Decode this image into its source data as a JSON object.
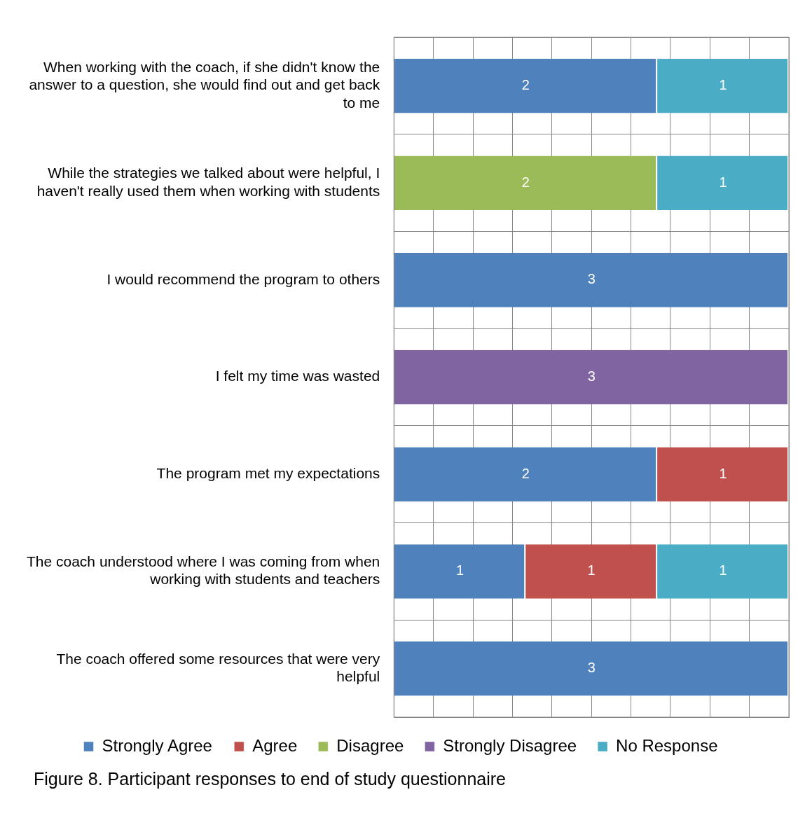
{
  "chart_data": {
    "type": "bar",
    "orientation": "horizontal",
    "stacked": true,
    "data_labels": true,
    "grid": true,
    "legend": "bottom",
    "tick_labels": "y",
    "categories": [
      "When working with the coach, if she didn't know the answer to a question, she would find out and get back to me",
      "While the strategies we talked about were helpful, I haven't really used them when working with students",
      "I would recommend the program to others",
      "I felt my time was wasted",
      "The program met my expectations",
      "The coach understood where I was coming from when working with students and teachers",
      "The coach offered some resources that were very helpful"
    ],
    "xlim": [
      0,
      3
    ],
    "xticks": [
      {
        "value": 0,
        "label": null
      },
      {
        "value": 0.3,
        "label": null
      },
      {
        "value": 0.6,
        "label": null
      },
      {
        "value": 0.9,
        "label": null
      },
      {
        "value": 1.2,
        "label": null
      },
      {
        "value": 1.5,
        "label": null
      },
      {
        "value": 1.8,
        "label": null
      },
      {
        "value": 2.1,
        "label": null
      },
      {
        "value": 2.4,
        "label": null
      },
      {
        "value": 2.7,
        "label": null
      },
      {
        "value": 3,
        "label": null
      }
    ],
    "series": [
      {
        "name": "Strongly Agree",
        "color": "#4f81bd",
        "values": [
          2,
          null,
          3,
          null,
          2,
          1,
          3
        ]
      },
      {
        "name": "Agree",
        "color": "#c0504d",
        "values": [
          null,
          null,
          null,
          null,
          1,
          1,
          null
        ]
      },
      {
        "name": "Disagree",
        "color": "#9bbb59",
        "values": [
          null,
          2,
          null,
          null,
          null,
          null,
          null
        ]
      },
      {
        "name": "Strongly Disagree",
        "color": "#8064a2",
        "values": [
          null,
          null,
          null,
          3,
          null,
          null,
          null
        ]
      },
      {
        "name": "No Response",
        "color": "#4bacc6",
        "values": [
          1,
          1,
          null,
          null,
          null,
          1,
          null
        ]
      }
    ],
    "annotations": [
      "Figure 8. Participant responses to end of study questionnaire"
    ]
  }
}
